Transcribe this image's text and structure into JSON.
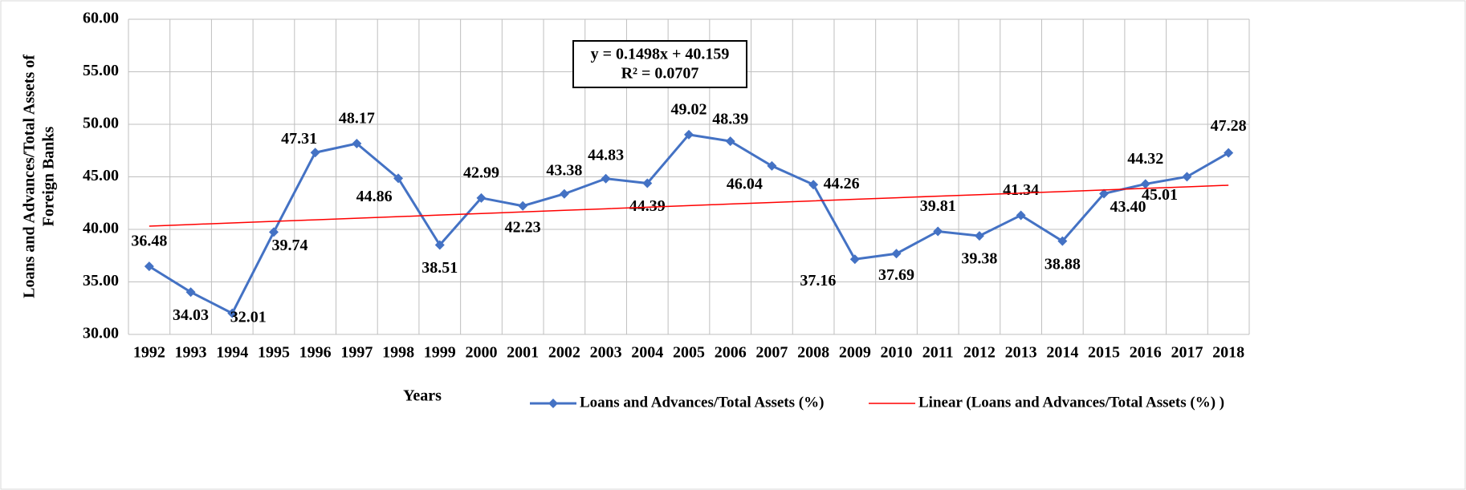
{
  "chart_data": {
    "type": "line",
    "categories": [
      "1992",
      "1993",
      "1994",
      "1995",
      "1996",
      "1997",
      "1998",
      "1999",
      "2000",
      "2001",
      "2002",
      "2003",
      "2004",
      "2005",
      "2006",
      "2007",
      "2008",
      "2009",
      "2010",
      "2011",
      "2012",
      "2013",
      "2014",
      "2015",
      "2016",
      "2017",
      "2018"
    ],
    "series": [
      {
        "name": "Loans and Advances/Total Assets (%)",
        "color": "#4472c4",
        "values": [
          36.48,
          34.03,
          32.01,
          39.74,
          47.31,
          48.17,
          44.86,
          38.51,
          42.99,
          42.23,
          43.38,
          44.83,
          44.39,
          49.02,
          48.39,
          46.04,
          44.26,
          37.16,
          37.69,
          39.81,
          39.38,
          41.34,
          38.88,
          43.4,
          44.32,
          45.01,
          47.28
        ],
        "value_labels": [
          "36.48",
          "34.03",
          "32.01",
          "39.74",
          "47.31",
          "48.17",
          "44.86",
          "38.51",
          "42.99",
          "42.23",
          "43.38",
          "44.83",
          "44.39",
          "49.02",
          "48.39",
          "46.04",
          "44.26",
          "37.16",
          "37.69",
          "39.81",
          "39.38",
          "41.34",
          "38.88",
          "43.40",
          "44.32",
          "45.01",
          "47.28"
        ]
      },
      {
        "name": "Linear (Loans and Advances/Total Assets (%) )",
        "color": "#ff0000",
        "values": [
          40.31,
          40.46,
          40.61,
          40.76,
          40.91,
          41.06,
          41.21,
          41.36,
          41.51,
          41.66,
          41.81,
          41.96,
          42.11,
          42.26,
          42.41,
          42.56,
          42.71,
          42.86,
          43.01,
          43.16,
          43.3,
          43.45,
          43.6,
          43.75,
          43.9,
          44.05,
          44.2
        ]
      }
    ],
    "ylim": [
      30,
      60
    ],
    "yticks": [
      {
        "value": 30,
        "label": "30.00"
      },
      {
        "value": 35,
        "label": "35.00"
      },
      {
        "value": 40,
        "label": "40.00"
      },
      {
        "value": 45,
        "label": "45.00"
      },
      {
        "value": 50,
        "label": "50.00"
      },
      {
        "value": 55,
        "label": "55.00"
      },
      {
        "value": 60,
        "label": "60.00"
      }
    ],
    "xlabel": "Years",
    "ylabel": [
      "Loans and Advances/Total Assets of",
      "Foreign Banks"
    ],
    "annotation": [
      "y = 0.1498x + 40.159",
      "R² = 0.0707"
    ],
    "grid": true
  }
}
